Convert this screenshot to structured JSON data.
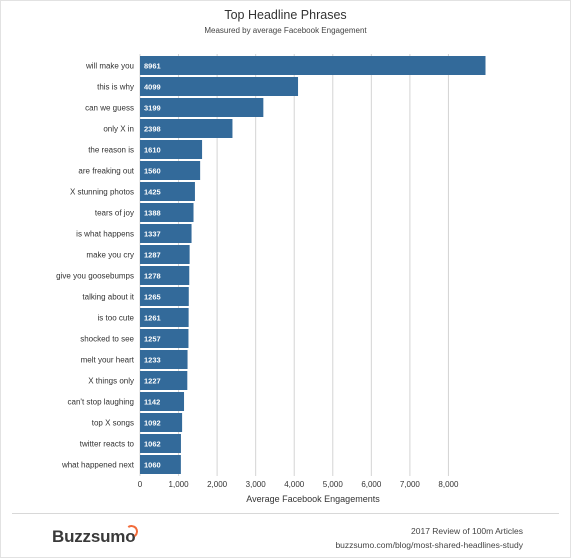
{
  "chart_data": {
    "type": "bar",
    "orientation": "horizontal",
    "title": "Top Headline Phrases",
    "subtitle": "Measured by average Facebook Engagement",
    "xlabel": "Average Facebook Engagements",
    "ylabel": "",
    "xlim": [
      0,
      9000
    ],
    "x_ticks": [
      0,
      1000,
      2000,
      3000,
      4000,
      5000,
      6000,
      7000,
      8000
    ],
    "x_tick_labels": [
      "0",
      "1,000",
      "2,000",
      "3,000",
      "4,000",
      "5,000",
      "6,000",
      "7,000",
      "8,000"
    ],
    "grid": "vertical",
    "bar_color": "#336a9a",
    "grid_color": "#d4d4d4",
    "categories": [
      "will make you",
      "this is why",
      "can we guess",
      "only X in",
      "the reason is",
      "are freaking out",
      "X stunning photos",
      "tears of joy",
      "is what happens",
      "make you cry",
      "give you goosebumps",
      "talking about it",
      "is too cute",
      "shocked to see",
      "melt your heart",
      "X things only",
      "can't stop laughing",
      "top X songs",
      "twitter reacts to",
      "what happened next"
    ],
    "values": [
      8961,
      4099,
      3199,
      2398,
      1610,
      1560,
      1425,
      1388,
      1337,
      1287,
      1278,
      1265,
      1261,
      1257,
      1233,
      1227,
      1142,
      1092,
      1062,
      1060
    ]
  },
  "footer": {
    "brand": "Buzzsumo",
    "line1": "2017 Review of 100m Articles",
    "line2": "buzzsumo.com/blog/most-shared-headlines-study",
    "brand_accent": "#f26b3a"
  }
}
